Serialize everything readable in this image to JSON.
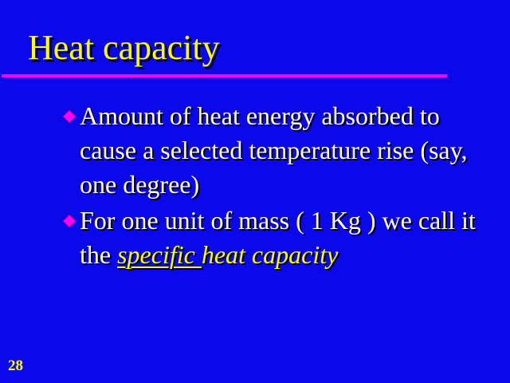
{
  "slide": {
    "title": "Heat capacity",
    "bullets": [
      {
        "text": "Amount of heat energy absorbed to cause a selected temperature rise (say, one degree)"
      },
      {
        "text_before": "For one unit of mass ( 1 Kg ) we call it the ",
        "highlight_underlined": "specific ",
        "highlight_rest": "heat capacity"
      }
    ],
    "page_number": "28"
  },
  "colors": {
    "background": "#0b09e9",
    "title": "#ffff00",
    "rule": "#ff00ff",
    "text": "#ffffff",
    "highlight": "#ffff00",
    "bullet": "#ff00ff"
  },
  "icons": {
    "bullet": "diamond-bullet-icon"
  }
}
